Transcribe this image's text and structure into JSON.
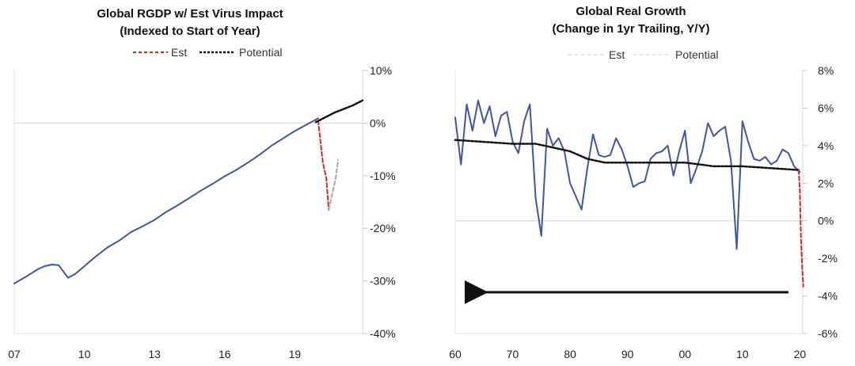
{
  "chart_data": [
    {
      "type": "line",
      "title": "Global RGDP w/ Est Virus Impact",
      "subtitle": "(Indexed to Start of Year)",
      "xlabel": "",
      "ylabel": "",
      "x_tick_labels": [
        "07",
        "10",
        "13",
        "16",
        "19"
      ],
      "x_ticks": [
        2007,
        2010,
        2013,
        2016,
        2019
      ],
      "xlim": [
        2007,
        2021.9
      ],
      "y_tick_labels": [
        "10%",
        "0%",
        "-10%",
        "-20%",
        "-30%",
        "-40%"
      ],
      "y_ticks": [
        10,
        0,
        -10,
        -20,
        -30,
        -40
      ],
      "ylim": [
        -40,
        10
      ],
      "grid": false,
      "legend_position": "top-center",
      "legend": [
        {
          "label": "Est",
          "color": "#d7262a",
          "style": "dashed"
        },
        {
          "label": "Potential",
          "color": "#111111",
          "style": "dotted"
        }
      ],
      "series": [
        {
          "key": "actual",
          "color": "#3f55a5",
          "style": "solid",
          "x": [
            2007.0,
            2007.5,
            2008.0,
            2008.3,
            2008.6,
            2008.9,
            2009.3,
            2009.6,
            2010.0,
            2010.5,
            2011.0,
            2011.5,
            2012.0,
            2012.5,
            2013.0,
            2013.5,
            2014.0,
            2014.5,
            2015.0,
            2015.5,
            2016.0,
            2016.5,
            2017.0,
            2017.5,
            2018.0,
            2018.5,
            2019.0,
            2019.5,
            2020.0
          ],
          "y": [
            -30.5,
            -29.2,
            -27.8,
            -27.2,
            -26.9,
            -27.0,
            -29.4,
            -28.7,
            -27.2,
            -25.3,
            -23.6,
            -22.3,
            -20.7,
            -19.6,
            -18.4,
            -16.9,
            -15.6,
            -14.2,
            -12.8,
            -11.5,
            -10.1,
            -8.9,
            -7.5,
            -6.0,
            -4.3,
            -2.9,
            -1.5,
            -0.3,
            0.9
          ]
        },
        {
          "key": "est",
          "name": "Est",
          "color": "#d7262a",
          "style": "dashed",
          "x": [
            2020.0,
            2020.1,
            2020.2,
            2020.35,
            2020.45
          ],
          "y": [
            0.5,
            -3.5,
            -7.5,
            -10.5,
            -16.5
          ]
        },
        {
          "key": "est-recovery",
          "color": "#a8a8a8",
          "style": "dashed",
          "x": [
            2020.45,
            2020.6,
            2020.75,
            2020.85
          ],
          "y": [
            -16.5,
            -13.5,
            -10.5,
            -7.0
          ]
        },
        {
          "key": "potential",
          "name": "Potential",
          "color": "#111111",
          "style": "dotted",
          "x": [
            2019.9,
            2020.3,
            2020.7,
            2021.1,
            2021.5,
            2021.9
          ],
          "y": [
            0.2,
            1.1,
            2.0,
            2.7,
            3.4,
            4.3
          ]
        }
      ]
    },
    {
      "type": "line",
      "title": "Global Real Growth",
      "subtitle": "(Change in 1yr Trailing, Y/Y)",
      "xlabel": "",
      "ylabel": "",
      "x_tick_labels": [
        "60",
        "70",
        "80",
        "90",
        "00",
        "10",
        "20"
      ],
      "x_ticks": [
        1960,
        1970,
        1980,
        1990,
        2000,
        2010,
        2020
      ],
      "xlim": [
        1960,
        2020.5
      ],
      "y_tick_labels": [
        "8%",
        "6%",
        "4%",
        "2%",
        "0%",
        "-2%",
        "-4%",
        "-6%"
      ],
      "y_ticks": [
        8,
        6,
        4,
        2,
        0,
        -2,
        -4,
        -6
      ],
      "ylim": [
        -6,
        8
      ],
      "grid": false,
      "legend_position": "top-center",
      "legend": [
        {
          "label": "Est",
          "color": "#dddddd",
          "style": "dashed"
        },
        {
          "label": "Potential",
          "color": "#dddddd",
          "style": "dashed"
        }
      ],
      "series": [
        {
          "key": "actual",
          "color": "#3f55a5",
          "style": "solid",
          "x": [
            1960,
            1961,
            1962,
            1963,
            1964,
            1965,
            1966,
            1967,
            1968,
            1969,
            1970,
            1971,
            1972,
            1973,
            1974,
            1975,
            1976,
            1977,
            1978,
            1979,
            1980,
            1981,
            1982,
            1983,
            1984,
            1985,
            1986,
            1987,
            1988,
            1989,
            1990,
            1991,
            1992,
            1993,
            1994,
            1995,
            1996,
            1997,
            1998,
            1999,
            2000,
            2001,
            2002,
            2003,
            2004,
            2005,
            2006,
            2007,
            2008,
            2009,
            2010,
            2011,
            2012,
            2013,
            2014,
            2015,
            2016,
            2017,
            2018,
            2019,
            2020
          ],
          "y": [
            5.5,
            3.0,
            6.2,
            4.8,
            6.4,
            5.2,
            6.1,
            4.5,
            5.6,
            5.8,
            4.2,
            3.6,
            5.3,
            6.2,
            1.2,
            -0.8,
            4.9,
            4.0,
            4.4,
            3.7,
            2.0,
            1.3,
            0.6,
            2.8,
            4.6,
            3.5,
            3.4,
            3.5,
            4.4,
            3.8,
            2.9,
            1.8,
            2.0,
            2.1,
            3.3,
            3.6,
            3.7,
            4.0,
            2.4,
            3.7,
            4.8,
            2.0,
            2.8,
            3.7,
            5.2,
            4.5,
            4.8,
            5.0,
            3.2,
            -1.5,
            5.3,
            4.2,
            3.3,
            3.2,
            3.4,
            3.0,
            3.2,
            3.8,
            3.6,
            2.9,
            2.6
          ]
        },
        {
          "key": "potential",
          "name": "Potential",
          "color": "#111111",
          "style": "dotted",
          "x": [
            1960,
            1965,
            1970,
            1974,
            1977,
            1980,
            1983,
            1986,
            1990,
            1995,
            2000,
            2005,
            2010,
            2015,
            2020
          ],
          "y": [
            4.3,
            4.2,
            4.1,
            4.1,
            3.9,
            3.7,
            3.3,
            3.1,
            3.1,
            3.1,
            3.1,
            2.9,
            2.9,
            2.8,
            2.7
          ]
        },
        {
          "key": "est",
          "name": "Est",
          "color": "#d7262a",
          "style": "dashed",
          "x": [
            2019.8,
            2020.0,
            2020.2,
            2020.4,
            2020.6
          ],
          "y": [
            2.7,
            1.5,
            -1.0,
            -2.5,
            -3.5
          ]
        }
      ],
      "annotation": {
        "type": "arrow",
        "direction": "left",
        "from_x": 2018,
        "to_x": 1963,
        "y": -3.8
      }
    }
  ]
}
